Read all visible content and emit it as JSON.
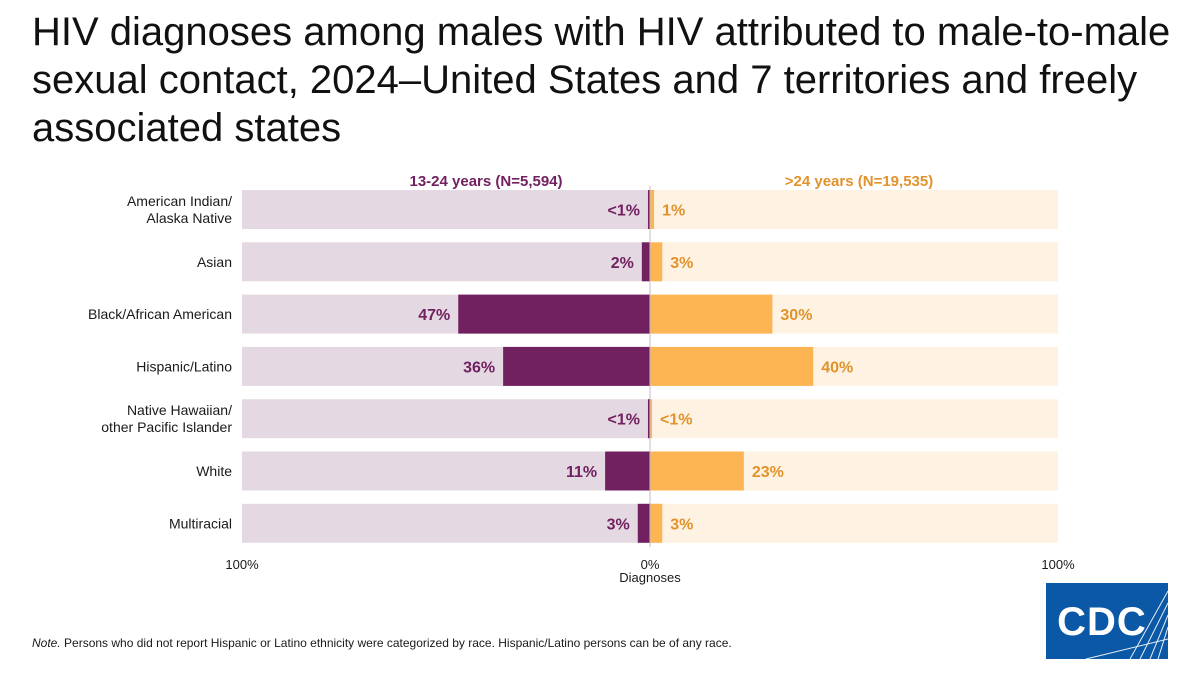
{
  "title": "HIV diagnoses among males with HIV attributed to male-to-male sexual contact, 2024–United States and 7 territories and freely associated states",
  "chart_data": {
    "type": "bar",
    "orientation": "horizontal-diverging",
    "categories": [
      [
        "American Indian/",
        "Alaska Native"
      ],
      [
        "Asian"
      ],
      [
        "Black/African American"
      ],
      [
        "Hispanic/Latino"
      ],
      [
        "Native Hawaiian/",
        "other Pacific Islander"
      ],
      [
        "White"
      ],
      [
        "Multiracial"
      ]
    ],
    "series": [
      {
        "name": "13-24 years (N=5,594)",
        "side": "left",
        "color": "#722160",
        "track_color": "#e4d9e2",
        "values": [
          0.5,
          2,
          47,
          36,
          0.5,
          11,
          3
        ],
        "labels": [
          "<1%",
          "2%",
          "47%",
          "36%",
          "<1%",
          "11%",
          "3%"
        ]
      },
      {
        "name": ">24 years (N=19,535)",
        "side": "right",
        "color": "#fcb552",
        "track_color": "#fef3e2",
        "values": [
          1,
          3,
          30,
          40,
          0.5,
          23,
          3
        ],
        "labels": [
          "1%",
          "3%",
          "30%",
          "40%",
          "<1%",
          "23%",
          "3%"
        ]
      }
    ],
    "label_colors": {
      "left": "#722160",
      "right": "#e2922b"
    },
    "xticks": [
      "100%",
      "0%",
      "100%"
    ],
    "xlabel": "Diagnoses",
    "xlim": [
      -100,
      100
    ],
    "grid": false
  },
  "note": {
    "label": "Note.",
    "text": " Persons who did not report Hispanic or Latino ethnicity were categorized by race. Hispanic/Latino persons can be of any race."
  },
  "logo": {
    "text": "CDC",
    "color": "#0a58a6"
  }
}
